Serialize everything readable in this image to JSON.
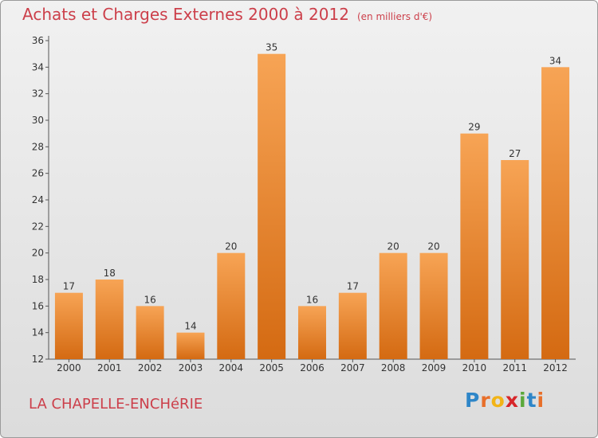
{
  "header": {
    "title": "Achats et Charges Externes 2000 à 2012",
    "unit": "(en milliers d'€)"
  },
  "commune": "LA CHAPELLE-ENCHéRIE",
  "logo": {
    "text": "Proxiti",
    "letters": [
      {
        "char": "P",
        "color": "#2e86c8"
      },
      {
        "char": "r",
        "color": "#e86f2a"
      },
      {
        "char": "o",
        "color": "#f2b417"
      },
      {
        "char": "x",
        "color": "#d7262a"
      },
      {
        "char": "i",
        "color": "#5aa83a"
      },
      {
        "char": "t",
        "color": "#2e86c8"
      },
      {
        "char": "i",
        "color": "#e86f2a"
      }
    ]
  },
  "chart_data": {
    "type": "bar",
    "categories": [
      "2000",
      "2001",
      "2002",
      "2003",
      "2004",
      "2005",
      "2006",
      "2007",
      "2008",
      "2009",
      "2010",
      "2011",
      "2012"
    ],
    "values": [
      17,
      18,
      16,
      14,
      20,
      35,
      16,
      17,
      20,
      20,
      29,
      27,
      34
    ],
    "ylim": [
      12,
      36
    ],
    "yticks": [
      12,
      14,
      16,
      18,
      20,
      22,
      24,
      26,
      28,
      30,
      32,
      34,
      36
    ],
    "grid": false,
    "bar_color_top": "#f7a455",
    "bar_color_bottom": "#d46a12"
  }
}
